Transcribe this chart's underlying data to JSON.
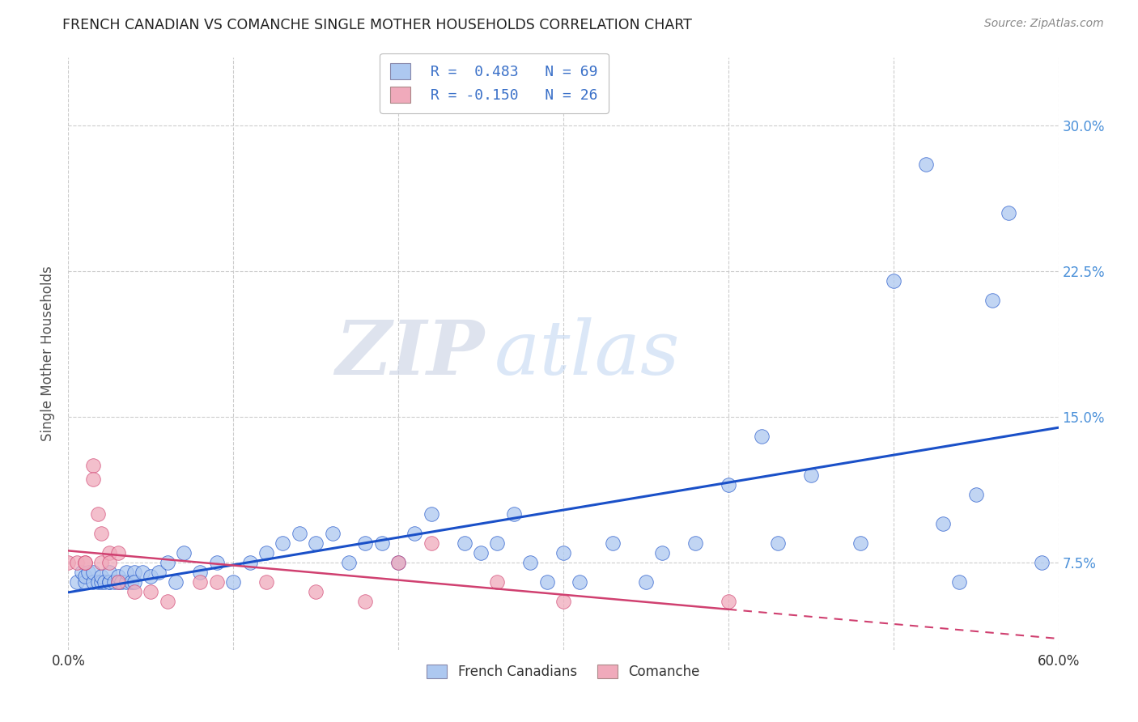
{
  "title": "FRENCH CANADIAN VS COMANCHE SINGLE MOTHER HOUSEHOLDS CORRELATION CHART",
  "source": "Source: ZipAtlas.com",
  "ylabel": "Single Mother Households",
  "ytick_labels": [
    "7.5%",
    "15.0%",
    "22.5%",
    "30.0%"
  ],
  "ytick_values": [
    0.075,
    0.15,
    0.225,
    0.3
  ],
  "xlim": [
    0.0,
    0.6
  ],
  "ylim": [
    0.03,
    0.335
  ],
  "legend_label1": "French Canadians",
  "legend_label2": "Comanche",
  "r1": "0.483",
  "n1": "69",
  "r2": "-0.150",
  "n2": "26",
  "color_blue": "#adc8f0",
  "color_pink": "#f0aabb",
  "line_blue": "#1a50c8",
  "line_pink": "#d04070",
  "watermark_zip": "ZIP",
  "watermark_atlas": "atlas",
  "background": "#ffffff",
  "french_canadian_x": [
    0.005,
    0.008,
    0.01,
    0.01,
    0.012,
    0.015,
    0.015,
    0.018,
    0.02,
    0.02,
    0.022,
    0.025,
    0.025,
    0.025,
    0.028,
    0.03,
    0.03,
    0.032,
    0.035,
    0.035,
    0.038,
    0.04,
    0.04,
    0.045,
    0.05,
    0.055,
    0.06,
    0.065,
    0.07,
    0.08,
    0.09,
    0.1,
    0.11,
    0.12,
    0.13,
    0.14,
    0.15,
    0.16,
    0.17,
    0.18,
    0.19,
    0.2,
    0.21,
    0.22,
    0.24,
    0.25,
    0.26,
    0.27,
    0.28,
    0.29,
    0.3,
    0.31,
    0.33,
    0.35,
    0.36,
    0.38,
    0.4,
    0.42,
    0.43,
    0.45,
    0.48,
    0.5,
    0.52,
    0.53,
    0.54,
    0.55,
    0.56,
    0.57,
    0.59
  ],
  "french_canadian_y": [
    0.065,
    0.07,
    0.065,
    0.068,
    0.07,
    0.065,
    0.07,
    0.065,
    0.065,
    0.068,
    0.065,
    0.065,
    0.065,
    0.07,
    0.065,
    0.065,
    0.068,
    0.065,
    0.065,
    0.07,
    0.065,
    0.07,
    0.065,
    0.07,
    0.068,
    0.07,
    0.075,
    0.065,
    0.08,
    0.07,
    0.075,
    0.065,
    0.075,
    0.08,
    0.085,
    0.09,
    0.085,
    0.09,
    0.075,
    0.085,
    0.085,
    0.075,
    0.09,
    0.1,
    0.085,
    0.08,
    0.085,
    0.1,
    0.075,
    0.065,
    0.08,
    0.065,
    0.085,
    0.065,
    0.08,
    0.085,
    0.115,
    0.14,
    0.085,
    0.12,
    0.085,
    0.22,
    0.28,
    0.095,
    0.065,
    0.11,
    0.21,
    0.255,
    0.075
  ],
  "comanche_x": [
    0.0,
    0.005,
    0.01,
    0.01,
    0.015,
    0.015,
    0.018,
    0.02,
    0.02,
    0.025,
    0.025,
    0.03,
    0.03,
    0.04,
    0.05,
    0.06,
    0.08,
    0.09,
    0.12,
    0.15,
    0.18,
    0.2,
    0.22,
    0.26,
    0.3,
    0.4
  ],
  "comanche_y": [
    0.075,
    0.075,
    0.075,
    0.075,
    0.125,
    0.118,
    0.1,
    0.09,
    0.075,
    0.08,
    0.075,
    0.08,
    0.065,
    0.06,
    0.06,
    0.055,
    0.065,
    0.065,
    0.065,
    0.06,
    0.055,
    0.075,
    0.085,
    0.065,
    0.055,
    0.055
  ]
}
